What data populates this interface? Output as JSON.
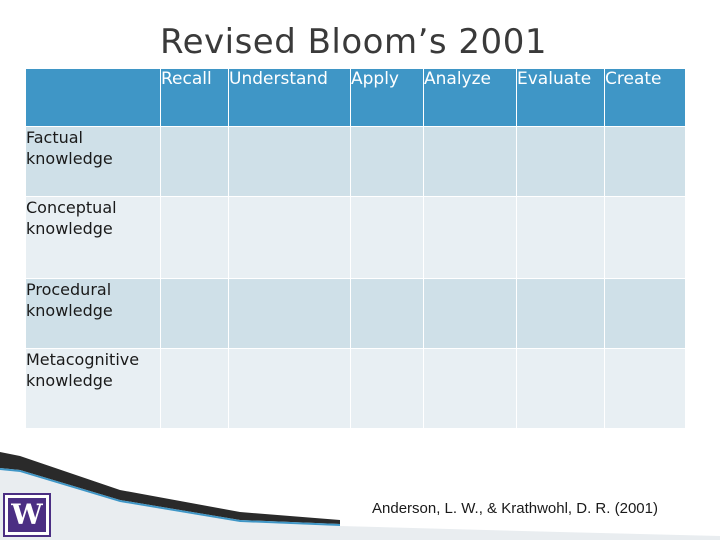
{
  "title": "Revised Bloom’s 2001",
  "columns": [
    "Recall",
    "Understand",
    "Apply",
    "Analyze",
    "Evaluate",
    "Create"
  ],
  "rows": [
    {
      "label": "Factual\nknowledge"
    },
    {
      "label": "Conceptual\nknowledge"
    },
    {
      "label": "Procedural\nknowledge"
    },
    {
      "label": "Metacognitive\nknowledge"
    }
  ],
  "colors": {
    "header_bg": "#3f96c6",
    "row_dark": "#cfe0e8",
    "row_light": "#e8eff3",
    "logo_purple": "#4b2e83"
  },
  "logo": {
    "icon": "uw-w-logo-icon",
    "letter": "W"
  },
  "citation": "Anderson, L. W., & Krathwohl, D. R. (2001)"
}
